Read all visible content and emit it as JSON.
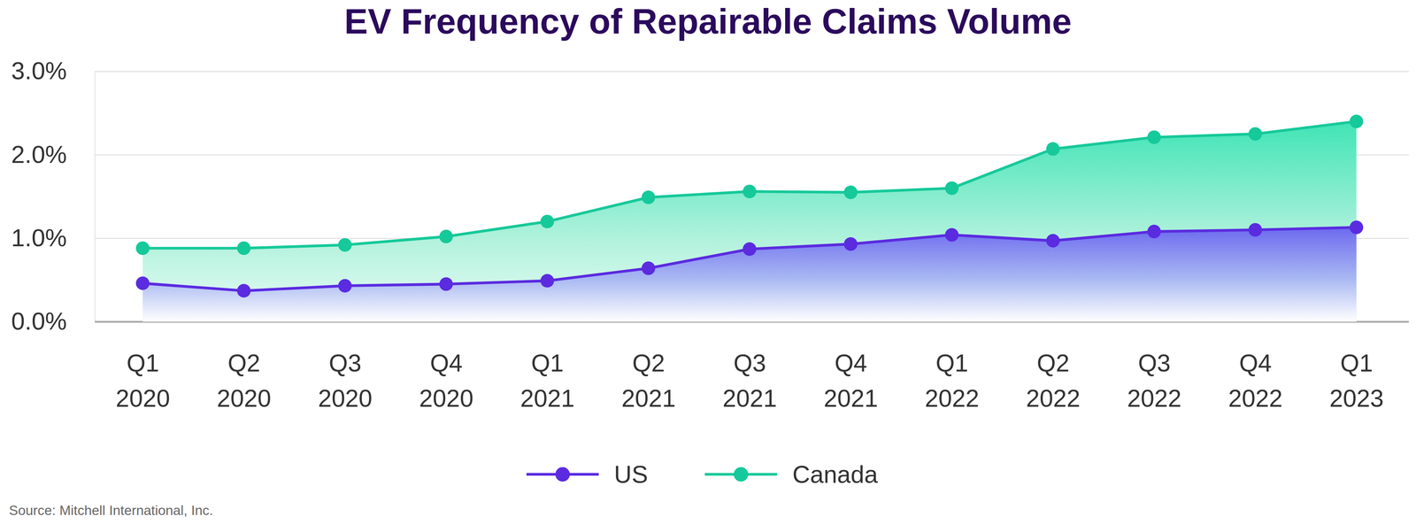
{
  "chart_data": {
    "type": "area",
    "title": "EV Frequency of Repairable Claims Volume",
    "source": "Source: Mitchell International, Inc.",
    "categories": [
      "Q1 2020",
      "Q2 2020",
      "Q3 2020",
      "Q4 2020",
      "Q1 2021",
      "Q2 2021",
      "Q3 2021",
      "Q4 2021",
      "Q1 2022",
      "Q2 2022",
      "Q3 2022",
      "Q4 2022",
      "Q1 2023"
    ],
    "series": [
      {
        "name": "US",
        "color": "#5b2be0",
        "marker": "circle",
        "values": [
          0.46,
          0.37,
          0.43,
          0.45,
          0.49,
          0.64,
          0.87,
          0.93,
          1.04,
          0.97,
          1.08,
          1.1,
          1.13
        ]
      },
      {
        "name": "Canada",
        "color": "#16c99a",
        "marker": "circle",
        "values": [
          0.88,
          0.88,
          0.92,
          1.02,
          1.2,
          1.49,
          1.56,
          1.55,
          1.6,
          2.07,
          2.21,
          2.25,
          2.4
        ]
      }
    ],
    "ylim": [
      0,
      3
    ],
    "yticks": [
      {
        "value": 0,
        "label": "0.0%"
      },
      {
        "value": 1,
        "label": "1.0%"
      },
      {
        "value": 2,
        "label": "2.0%"
      },
      {
        "value": 3,
        "label": "3.0%"
      }
    ],
    "grid": true,
    "legend": "bottom"
  }
}
